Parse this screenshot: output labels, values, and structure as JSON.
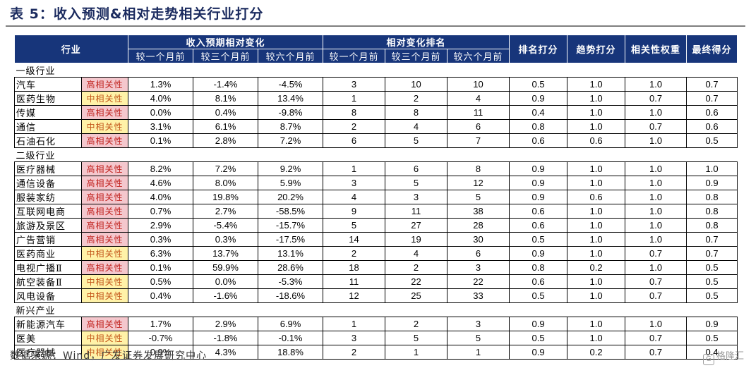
{
  "title": "表 5：收入预测&相对走势相关行业打分",
  "headers": {
    "industry": "行业",
    "revision_group": "收入预期相对变化",
    "rank_group": "相对变化排名",
    "sub": [
      "较一个月前",
      "较三个月前",
      "较六个月前"
    ],
    "rank_score": "排名打分",
    "trend_score": "趋势打分",
    "corr_weight": "相关性权重",
    "final_score": "最终得分"
  },
  "sections": [
    {
      "label": "一级行业",
      "rows": [
        {
          "name": "汽车",
          "tag": "高相关性",
          "level": "high",
          "rev": [
            "1.3%",
            "-1.4%",
            "-4.5%"
          ],
          "rank": [
            "3",
            "10",
            "10"
          ],
          "rank_score": "0.5",
          "trend_score": "1.0",
          "corr_weight": "1.0",
          "final": "0.7"
        },
        {
          "name": "医药生物",
          "tag": "中相关性",
          "level": "mid",
          "rev": [
            "4.0%",
            "8.1%",
            "13.4%"
          ],
          "rank": [
            "1",
            "2",
            "4"
          ],
          "rank_score": "0.9",
          "trend_score": "1.0",
          "corr_weight": "0.7",
          "final": "0.7"
        },
        {
          "name": "传媒",
          "tag": "高相关性",
          "level": "high",
          "rev": [
            "0.0%",
            "0.4%",
            "-9.8%"
          ],
          "rank": [
            "8",
            "8",
            "11"
          ],
          "rank_score": "0.4",
          "trend_score": "1.0",
          "corr_weight": "1.0",
          "final": "0.6"
        },
        {
          "name": "通信",
          "tag": "中相关性",
          "level": "mid",
          "rev": [
            "3.1%",
            "6.1%",
            "8.7%"
          ],
          "rank": [
            "2",
            "4",
            "6"
          ],
          "rank_score": "0.8",
          "trend_score": "1.0",
          "corr_weight": "0.7",
          "final": "0.6"
        },
        {
          "name": "石油石化",
          "tag": "高相关性",
          "level": "high",
          "rev": [
            "0.1%",
            "2.8%",
            "7.2%"
          ],
          "rank": [
            "6",
            "5",
            "7"
          ],
          "rank_score": "0.6",
          "trend_score": "0.6",
          "corr_weight": "1.0",
          "final": "0.5"
        }
      ]
    },
    {
      "label": "二级行业",
      "rows": [
        {
          "name": "医疗器械",
          "tag": "高相关性",
          "level": "high",
          "rev": [
            "8.2%",
            "7.2%",
            "9.2%"
          ],
          "rank": [
            "1",
            "6",
            "8"
          ],
          "rank_score": "0.9",
          "trend_score": "1.0",
          "corr_weight": "1.0",
          "final": "1.0"
        },
        {
          "name": "通信设备",
          "tag": "高相关性",
          "level": "high",
          "rev": [
            "4.6%",
            "8.0%",
            "5.9%"
          ],
          "rank": [
            "3",
            "5",
            "12"
          ],
          "rank_score": "0.9",
          "trend_score": "1.0",
          "corr_weight": "1.0",
          "final": "0.9"
        },
        {
          "name": "服装家纺",
          "tag": "高相关性",
          "level": "high",
          "rev": [
            "4.0%",
            "19.8%",
            "20.2%"
          ],
          "rank": [
            "4",
            "3",
            "5"
          ],
          "rank_score": "0.9",
          "trend_score": "0.6",
          "corr_weight": "1.0",
          "final": "0.8"
        },
        {
          "name": "互联网电商",
          "tag": "高相关性",
          "level": "high",
          "rev": [
            "0.7%",
            "2.7%",
            "-58.5%"
          ],
          "rank": [
            "9",
            "11",
            "38"
          ],
          "rank_score": "0.6",
          "trend_score": "1.0",
          "corr_weight": "1.0",
          "final": "0.8"
        },
        {
          "name": "旅游及景区",
          "tag": "高相关性",
          "level": "high",
          "rev": [
            "2.9%",
            "-5.4%",
            "-15.7%"
          ],
          "rank": [
            "5",
            "27",
            "28"
          ],
          "rank_score": "0.6",
          "trend_score": "1.0",
          "corr_weight": "1.0",
          "final": "0.8"
        },
        {
          "name": "广告营销",
          "tag": "高相关性",
          "level": "high",
          "rev": [
            "0.3%",
            "0.3%",
            "-17.5%"
          ],
          "rank": [
            "14",
            "19",
            "30"
          ],
          "rank_score": "0.5",
          "trend_score": "1.0",
          "corr_weight": "1.0",
          "final": "0.7"
        },
        {
          "name": "医药商业",
          "tag": "中相关性",
          "level": "mid",
          "rev": [
            "6.3%",
            "13.7%",
            "13.1%"
          ],
          "rank": [
            "2",
            "4",
            "6"
          ],
          "rank_score": "0.9",
          "trend_score": "1.0",
          "corr_weight": "0.7",
          "final": "0.7"
        },
        {
          "name": "电视广播Ⅱ",
          "tag": "高相关性",
          "level": "high",
          "rev": [
            "0.1%",
            "59.9%",
            "28.6%"
          ],
          "rank": [
            "18",
            "2",
            "3"
          ],
          "rank_score": "0.8",
          "trend_score": "0.2",
          "corr_weight": "1.0",
          "final": "0.5"
        },
        {
          "name": "航空装备Ⅱ",
          "tag": "中相关性",
          "level": "mid",
          "rev": [
            "0.5%",
            "0.0%",
            "-5.3%"
          ],
          "rank": [
            "11",
            "22",
            "22"
          ],
          "rank_score": "0.6",
          "trend_score": "1.0",
          "corr_weight": "0.7",
          "final": "0.5"
        },
        {
          "name": "风电设备",
          "tag": "中相关性",
          "level": "mid",
          "rev": [
            "0.4%",
            "-1.6%",
            "-18.6%"
          ],
          "rank": [
            "12",
            "25",
            "33"
          ],
          "rank_score": "0.5",
          "trend_score": "1.0",
          "corr_weight": "0.7",
          "final": "0.5"
        }
      ]
    },
    {
      "label": "新兴产业",
      "rows": [
        {
          "name": "新能源汽车",
          "tag": "高相关性",
          "level": "high",
          "rev": [
            "1.7%",
            "2.9%",
            "6.9%"
          ],
          "rank": [
            "1",
            "2",
            "3"
          ],
          "rank_score": "0.9",
          "trend_score": "1.0",
          "corr_weight": "1.0",
          "final": "0.9"
        },
        {
          "name": "医美",
          "tag": "中相关性",
          "level": "mid",
          "rev": [
            "-0.7%",
            "-1.8%",
            "-0.1%"
          ],
          "rank": [
            "3",
            "5",
            "5"
          ],
          "rank_score": "0.5",
          "trend_score": "1.0",
          "corr_weight": "0.7",
          "final": "0.5"
        },
        {
          "name": "医疗器械",
          "tag": "中相关性",
          "level": "mid",
          "rev": [
            "0.9%",
            "4.3%",
            "18.8%"
          ],
          "rank": [
            "2",
            "1",
            "1"
          ],
          "rank_score": "0.9",
          "trend_score": "0.2",
          "corr_weight": "0.7",
          "final": "0.4"
        }
      ]
    }
  ],
  "source": "数据来源：Wind，广发证券发展研究中心",
  "watermark": "格隆汇"
}
